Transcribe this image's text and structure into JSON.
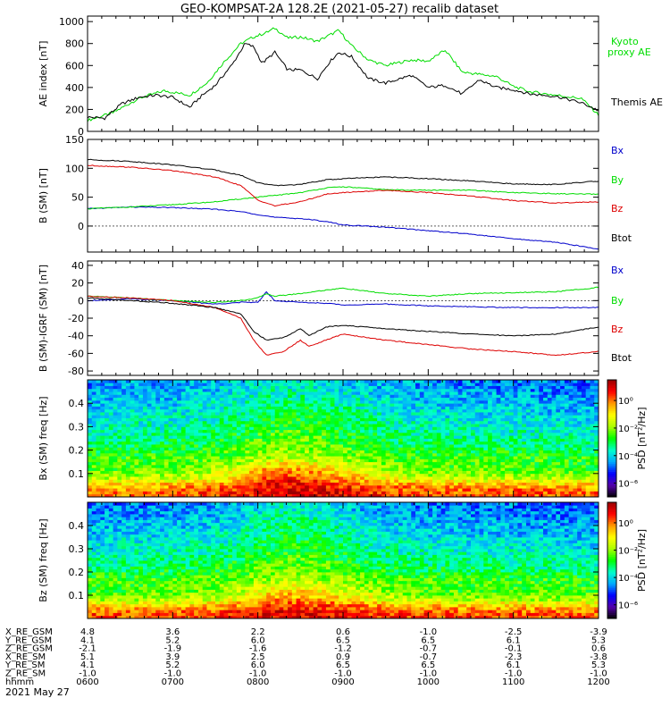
{
  "title": "GEO-KOMPSAT-2A 128.2E (2021-05-27) recalib dataset",
  "colors": {
    "black": "#000000",
    "green": "#00dd00",
    "blue": "#0000cc",
    "red": "#dd0000"
  },
  "colorbar": {
    "label": "PSD [nT²/Hz]",
    "tick_labels": [
      "10⁰",
      "10⁻²",
      "10⁻⁴",
      "10⁻⁶"
    ],
    "tick_exponents": [
      0,
      -2,
      -4,
      -6
    ],
    "log_range": [
      -7,
      1.5
    ],
    "colormap": [
      "#000000",
      "#5500aa",
      "#0000ff",
      "#00aaff",
      "#00ffcc",
      "#00ff00",
      "#aaff00",
      "#ffff00",
      "#ff9900",
      "#ff0000",
      "#990000"
    ]
  },
  "x_axis": {
    "time_labels": [
      "0600",
      "0700",
      "0800",
      "0900",
      "1000",
      "1100",
      "1200"
    ],
    "time_hours": [
      6,
      7,
      8,
      9,
      10,
      11,
      12
    ],
    "ephemeris": [
      {
        "label": "X_RE_GSM",
        "values": [
          "4.8",
          "3.6",
          "2.2",
          "0.6",
          "-1.0",
          "-2.5",
          "-3.9"
        ]
      },
      {
        "label": "Y_RE_GSM",
        "values": [
          "4.1",
          "5.2",
          "6.0",
          "6.5",
          "6.5",
          "6.1",
          "5.3"
        ]
      },
      {
        "label": "Z_RE_GSM",
        "values": [
          "-2.1",
          "-1.9",
          "-1.6",
          "-1.2",
          "-0.7",
          "-0.1",
          "0.6"
        ]
      },
      {
        "label": "X_RE_SM",
        "values": [
          "5.1",
          "3.9",
          "2.5",
          "0.9",
          "-0.7",
          "-2.3",
          "-3.8"
        ]
      },
      {
        "label": "Y_RE_SM",
        "values": [
          "4.1",
          "5.2",
          "6.0",
          "6.5",
          "6.5",
          "6.1",
          "5.3"
        ]
      },
      {
        "label": "Z_RE_SM",
        "values": [
          "-1.0",
          "-1.0",
          "-1.0",
          "-1.0",
          "-1.0",
          "-1.0",
          "-1.0"
        ]
      },
      {
        "label": "hhmm",
        "values": [
          "0600",
          "0700",
          "0800",
          "0900",
          "1000",
          "1100",
          "1200"
        ]
      }
    ],
    "date_label": "2021 May 27"
  },
  "chart_data": [
    {
      "type": "line",
      "ylabel": "AE index [nT]",
      "ylim": [
        0,
        1050
      ],
      "yticks": [
        0,
        200,
        400,
        600,
        800,
        1000
      ],
      "xlim": [
        6,
        12
      ],
      "series": [
        {
          "name": "Kyoto proxy AE",
          "color": "green",
          "x": [
            6.0,
            6.3,
            6.6,
            6.9,
            7.2,
            7.4,
            7.6,
            7.8,
            7.95,
            8.1,
            8.2,
            8.35,
            8.5,
            8.7,
            8.85,
            8.95,
            9.1,
            9.3,
            9.5,
            9.8,
            10.0,
            10.2,
            10.4,
            10.6,
            10.8,
            11.0,
            11.2,
            11.5,
            11.8,
            12.0
          ],
          "y": [
            100,
            170,
            300,
            370,
            330,
            440,
            630,
            800,
            860,
            900,
            940,
            850,
            860,
            820,
            880,
            920,
            780,
            650,
            600,
            650,
            640,
            740,
            540,
            520,
            500,
            410,
            360,
            330,
            300,
            150
          ]
        },
        {
          "name": "Themis AE",
          "color": "black",
          "x": [
            6.0,
            6.2,
            6.4,
            6.6,
            6.8,
            7.0,
            7.2,
            7.35,
            7.5,
            7.7,
            7.85,
            7.95,
            8.05,
            8.2,
            8.35,
            8.5,
            8.7,
            8.85,
            8.95,
            9.1,
            9.3,
            9.5,
            9.8,
            10.0,
            10.2,
            10.4,
            10.6,
            10.8,
            11.0,
            11.2,
            11.5,
            11.8,
            12.0
          ],
          "y": [
            130,
            120,
            250,
            310,
            330,
            310,
            220,
            330,
            420,
            610,
            800,
            770,
            620,
            720,
            560,
            560,
            480,
            640,
            720,
            680,
            480,
            440,
            510,
            400,
            420,
            340,
            470,
            400,
            380,
            340,
            320,
            260,
            190
          ]
        }
      ],
      "legend": [
        "Kyoto proxy AE",
        "Themis AE"
      ]
    },
    {
      "type": "line",
      "ylabel": "B (SM) [nT]",
      "ylim": [
        -45,
        150
      ],
      "yticks": [
        -50,
        0,
        50,
        100,
        150
      ],
      "xlim": [
        6,
        12
      ],
      "series": [
        {
          "name": "Bx",
          "color": "blue",
          "x": [
            6.0,
            6.5,
            7.0,
            7.5,
            7.8,
            8.0,
            8.2,
            8.5,
            8.8,
            9.0,
            9.5,
            10.0,
            10.5,
            11.0,
            11.5,
            12.0
          ],
          "y": [
            30,
            33,
            32,
            29,
            25,
            20,
            15,
            13,
            8,
            2,
            -2,
            -8,
            -14,
            -22,
            -28,
            -40
          ]
        },
        {
          "name": "By",
          "color": "green",
          "x": [
            6.0,
            6.5,
            7.0,
            7.5,
            7.8,
            8.0,
            8.2,
            8.5,
            8.8,
            9.0,
            9.5,
            10.0,
            10.5,
            11.0,
            11.5,
            12.0
          ],
          "y": [
            30,
            33,
            37,
            42,
            47,
            50,
            53,
            58,
            66,
            68,
            63,
            62,
            62,
            58,
            56,
            55
          ]
        },
        {
          "name": "Bz",
          "color": "red",
          "x": [
            6.0,
            6.5,
            7.0,
            7.5,
            7.8,
            8.0,
            8.2,
            8.5,
            8.8,
            9.0,
            9.5,
            10.0,
            10.5,
            11.0,
            11.5,
            12.0
          ],
          "y": [
            105,
            102,
            96,
            85,
            70,
            45,
            35,
            42,
            55,
            58,
            62,
            58,
            52,
            44,
            40,
            42
          ]
        },
        {
          "name": "Btot",
          "color": "black",
          "x": [
            6.0,
            6.5,
            7.0,
            7.5,
            7.8,
            8.0,
            8.2,
            8.5,
            8.8,
            9.0,
            9.5,
            10.0,
            10.5,
            11.0,
            11.5,
            12.0
          ],
          "y": [
            115,
            112,
            106,
            97,
            88,
            75,
            70,
            72,
            80,
            82,
            85,
            82,
            78,
            73,
            72,
            78
          ]
        }
      ],
      "legend": [
        "Bx",
        "By",
        "Bz",
        "Btot"
      ]
    },
    {
      "type": "line",
      "ylabel": "B (SM)-IGRF (SM) [nT]",
      "ylim": [
        -85,
        45
      ],
      "yticks": [
        -80,
        -60,
        -40,
        -20,
        0,
        20,
        40
      ],
      "xlim": [
        6,
        12
      ],
      "series": [
        {
          "name": "Bx",
          "color": "blue",
          "x": [
            6.0,
            6.5,
            7.0,
            7.5,
            7.8,
            8.0,
            8.1,
            8.2,
            8.5,
            8.8,
            9.0,
            9.5,
            10.0,
            10.5,
            11.0,
            11.5,
            12.0
          ],
          "y": [
            0,
            2,
            0,
            -4,
            -2,
            -2,
            10,
            0,
            -2,
            -3,
            -5,
            -4,
            -6,
            -7,
            -8,
            -8,
            -8
          ]
        },
        {
          "name": "By",
          "color": "green",
          "x": [
            6.0,
            6.5,
            7.0,
            7.5,
            7.8,
            8.0,
            8.1,
            8.2,
            8.5,
            8.8,
            9.0,
            9.5,
            10.0,
            10.5,
            11.0,
            11.5,
            12.0
          ],
          "y": [
            5,
            3,
            0,
            -2,
            0,
            3,
            8,
            5,
            8,
            12,
            14,
            8,
            5,
            8,
            9,
            10,
            15
          ]
        },
        {
          "name": "Bz",
          "color": "red",
          "x": [
            6.0,
            6.5,
            7.0,
            7.5,
            7.8,
            7.95,
            8.1,
            8.3,
            8.5,
            8.6,
            8.8,
            9.0,
            9.5,
            10.0,
            10.5,
            11.0,
            11.5,
            12.0
          ],
          "y": [
            5,
            3,
            0,
            -8,
            -20,
            -45,
            -62,
            -58,
            -45,
            -52,
            -45,
            -38,
            -45,
            -50,
            -55,
            -58,
            -62,
            -58
          ]
        },
        {
          "name": "Btot",
          "color": "black",
          "x": [
            6.0,
            6.5,
            7.0,
            7.5,
            7.8,
            7.95,
            8.1,
            8.3,
            8.5,
            8.6,
            8.8,
            9.0,
            9.5,
            10.0,
            10.5,
            11.0,
            11.5,
            12.0
          ],
          "y": [
            3,
            0,
            -3,
            -8,
            -15,
            -35,
            -45,
            -42,
            -32,
            -40,
            -30,
            -28,
            -32,
            -35,
            -38,
            -40,
            -38,
            -30
          ]
        }
      ],
      "legend": [
        "Bx",
        "By",
        "Bz",
        "Btot"
      ]
    },
    {
      "type": "heatmap",
      "ylabel": "Bx (SM) freq [Hz]",
      "ylim": [
        0,
        0.5
      ],
      "yticks": [
        0.1,
        0.2,
        0.3,
        0.4
      ],
      "xlim": [
        6,
        12
      ],
      "x": [
        6.0,
        6.5,
        7.0,
        7.5,
        7.8,
        8.0,
        8.3,
        8.6,
        8.8,
        9.0,
        9.3,
        9.6,
        10.0,
        10.5,
        11.0,
        11.5,
        12.0
      ],
      "freq": [
        0.02,
        0.05,
        0.08,
        0.12,
        0.17,
        0.22,
        0.3,
        0.4,
        0.48
      ],
      "log_psd": [
        [
          0.0,
          -0.6,
          -1.8,
          -2.5,
          -2.6,
          -3.2,
          -3.8,
          -4.2,
          -4.6
        ],
        [
          0.0,
          -0.5,
          -1.6,
          -2.4,
          -2.6,
          -3.1,
          -3.6,
          -4.0,
          -4.4
        ],
        [
          0.1,
          -0.4,
          -1.5,
          -2.3,
          -2.5,
          -3.0,
          -3.6,
          -4.1,
          -4.5
        ],
        [
          0.3,
          -0.2,
          -1.2,
          -1.8,
          -2.4,
          -2.8,
          -3.3,
          -3.8,
          -4.2
        ],
        [
          0.5,
          0.2,
          -0.8,
          -1.4,
          -2.2,
          -2.6,
          -3.1,
          -3.6,
          -4.0
        ],
        [
          0.8,
          0.5,
          0.1,
          -0.6,
          -1.9,
          -2.3,
          -2.8,
          -3.4,
          -3.9
        ],
        [
          1.0,
          0.8,
          0.6,
          -0.2,
          -1.7,
          -2.1,
          -2.6,
          -3.2,
          -3.7
        ],
        [
          1.0,
          0.7,
          0.3,
          -0.6,
          -1.8,
          -2.2,
          -2.7,
          -3.2,
          -3.8
        ],
        [
          0.9,
          0.6,
          0.1,
          -0.8,
          -1.9,
          -2.3,
          -2.8,
          -3.3,
          -3.9
        ],
        [
          0.8,
          0.4,
          -0.3,
          -1.2,
          -2.0,
          -2.5,
          -3.0,
          -3.5,
          -4.0
        ],
        [
          0.6,
          0.2,
          -0.8,
          -1.6,
          -2.2,
          -2.7,
          -3.2,
          -3.7,
          -4.2
        ],
        [
          0.4,
          -0.1,
          -1.3,
          -2.1,
          -2.4,
          -3.0,
          -3.5,
          -4.0,
          -4.4
        ],
        [
          0.3,
          -0.3,
          -1.5,
          -2.3,
          -2.5,
          -3.1,
          -3.6,
          -4.1,
          -4.5
        ],
        [
          0.2,
          -0.4,
          -1.6,
          -2.4,
          -2.5,
          -3.2,
          -3.7,
          -4.2,
          -4.6
        ],
        [
          0.2,
          -0.4,
          -1.6,
          -2.4,
          -2.6,
          -3.2,
          -3.7,
          -4.2,
          -4.6
        ],
        [
          0.1,
          -0.5,
          -1.7,
          -2.5,
          -2.6,
          -3.3,
          -3.8,
          -4.3,
          -4.7
        ],
        [
          0.0,
          -0.6,
          -1.8,
          -2.6,
          -2.7,
          -3.4,
          -3.9,
          -4.4,
          -4.8
        ]
      ]
    },
    {
      "type": "heatmap",
      "ylabel": "Bz (SM) freq [Hz]",
      "ylim": [
        0,
        0.5
      ],
      "yticks": [
        0.1,
        0.2,
        0.3,
        0.4
      ],
      "xlim": [
        6,
        12
      ],
      "x": [
        6.0,
        6.5,
        7.0,
        7.5,
        7.8,
        8.0,
        8.3,
        8.6,
        8.8,
        9.0,
        9.3,
        9.6,
        10.0,
        10.5,
        11.0,
        11.5,
        12.0
      ],
      "freq": [
        0.02,
        0.05,
        0.08,
        0.12,
        0.17,
        0.22,
        0.3,
        0.4,
        0.48
      ],
      "log_psd": [
        [
          0.2,
          -0.5,
          -1.9,
          -2.6,
          -2.5,
          -3.2,
          -3.8,
          -4.3,
          -4.7
        ],
        [
          0.2,
          -0.5,
          -1.8,
          -2.5,
          -2.5,
          -3.2,
          -3.7,
          -4.2,
          -4.6
        ],
        [
          0.3,
          -0.4,
          -1.7,
          -2.4,
          -2.4,
          -3.1,
          -3.7,
          -4.2,
          -4.6
        ],
        [
          0.4,
          -0.2,
          -1.4,
          -2.1,
          -2.3,
          -2.9,
          -3.5,
          -4.0,
          -4.4
        ],
        [
          0.5,
          0.0,
          -1.0,
          -1.7,
          -2.2,
          -2.7,
          -3.3,
          -3.8,
          -4.2
        ],
        [
          0.7,
          0.3,
          -0.5,
          -1.2,
          -2.0,
          -2.4,
          -3.0,
          -3.5,
          -4.0
        ],
        [
          0.9,
          0.5,
          -0.1,
          -0.8,
          -1.8,
          -2.2,
          -2.7,
          -3.2,
          -3.7
        ],
        [
          0.9,
          0.5,
          -0.2,
          -0.9,
          -1.8,
          -2.2,
          -2.7,
          -3.3,
          -3.8
        ],
        [
          0.8,
          0.4,
          -0.3,
          -1.1,
          -1.9,
          -2.4,
          -2.9,
          -3.4,
          -3.9
        ],
        [
          0.7,
          0.3,
          -0.6,
          -1.4,
          -2.1,
          -2.6,
          -3.1,
          -3.6,
          -4.1
        ],
        [
          0.5,
          0.0,
          -1.0,
          -1.8,
          -2.3,
          -2.8,
          -3.4,
          -3.9,
          -4.3
        ],
        [
          0.4,
          -0.2,
          -1.4,
          -2.2,
          -2.4,
          -3.0,
          -3.6,
          -4.1,
          -4.5
        ],
        [
          0.3,
          -0.3,
          -1.6,
          -2.4,
          -2.5,
          -3.1,
          -3.7,
          -4.2,
          -4.6
        ],
        [
          0.2,
          -0.4,
          -1.7,
          -2.5,
          -2.5,
          -3.2,
          -3.8,
          -4.3,
          -4.7
        ],
        [
          0.2,
          -0.4,
          -1.7,
          -2.5,
          -2.6,
          -3.2,
          -3.8,
          -4.3,
          -4.7
        ],
        [
          0.1,
          -0.5,
          -1.8,
          -2.6,
          -2.6,
          -3.3,
          -3.9,
          -4.4,
          -4.8
        ],
        [
          0.1,
          -0.5,
          -1.8,
          -2.6,
          -2.7,
          -3.3,
          -3.9,
          -4.4,
          -4.8
        ]
      ]
    }
  ]
}
